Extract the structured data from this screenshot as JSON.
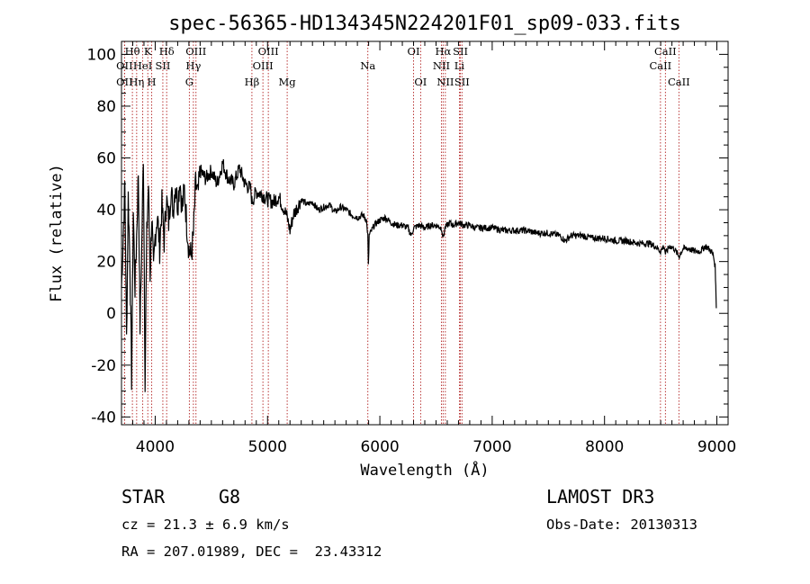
{
  "chart_data": {
    "type": "line",
    "title": "spec-56365-HD134345N224201F01_sp09-033.fits",
    "xlabel": "Wavelength (Å)",
    "ylabel": "Flux (relative)",
    "xlim": [
      3700,
      9100
    ],
    "ylim": [
      -43,
      105
    ],
    "xticks": [
      4000,
      5000,
      6000,
      7000,
      8000,
      9000
    ],
    "yticks": [
      -40,
      -20,
      0,
      20,
      40,
      60,
      80,
      100
    ],
    "series": [
      {
        "name": "flux",
        "points": [
          [
            3700,
            10
          ],
          [
            3715,
            30
          ],
          [
            3730,
            50
          ],
          [
            3745,
            -10
          ],
          [
            3760,
            45
          ],
          [
            3775,
            20
          ],
          [
            3790,
            -25
          ],
          [
            3805,
            40
          ],
          [
            3820,
            10
          ],
          [
            3835,
            30
          ],
          [
            3850,
            55
          ],
          [
            3865,
            -5
          ],
          [
            3880,
            25
          ],
          [
            3895,
            62
          ],
          [
            3910,
            -25
          ],
          [
            3925,
            30
          ],
          [
            3940,
            50
          ],
          [
            3955,
            15
          ],
          [
            3970,
            38
          ],
          [
            3985,
            15
          ],
          [
            4000,
            30
          ],
          [
            4020,
            38
          ],
          [
            4040,
            25
          ],
          [
            4060,
            42
          ],
          [
            4080,
            28
          ],
          [
            4100,
            45
          ],
          [
            4120,
            35
          ],
          [
            4140,
            48
          ],
          [
            4160,
            40
          ],
          [
            4180,
            50
          ],
          [
            4200,
            42
          ],
          [
            4220,
            52
          ],
          [
            4240,
            40
          ],
          [
            4260,
            48
          ],
          [
            4280,
            35
          ],
          [
            4300,
            25
          ],
          [
            4320,
            22
          ],
          [
            4340,
            30
          ],
          [
            4360,
            50
          ],
          [
            4380,
            45
          ],
          [
            4400,
            55
          ],
          [
            4450,
            52
          ],
          [
            4500,
            55
          ],
          [
            4550,
            50
          ],
          [
            4600,
            58
          ],
          [
            4650,
            52
          ],
          [
            4700,
            50
          ],
          [
            4750,
            56
          ],
          [
            4800,
            50
          ],
          [
            4850,
            48
          ],
          [
            4861,
            43
          ],
          [
            4900,
            47
          ],
          [
            4950,
            46
          ],
          [
            5000,
            44
          ],
          [
            5050,
            43
          ],
          [
            5100,
            45
          ],
          [
            5150,
            40
          ],
          [
            5175,
            37
          ],
          [
            5200,
            32
          ],
          [
            5230,
            38
          ],
          [
            5300,
            44
          ],
          [
            5350,
            42
          ],
          [
            5400,
            43
          ],
          [
            5450,
            40
          ],
          [
            5500,
            41
          ],
          [
            5550,
            42
          ],
          [
            5600,
            39
          ],
          [
            5650,
            41
          ],
          [
            5700,
            40
          ],
          [
            5750,
            38
          ],
          [
            5800,
            37
          ],
          [
            5850,
            38
          ],
          [
            5880,
            36
          ],
          [
            5893,
            30
          ],
          [
            5898,
            18
          ],
          [
            5905,
            30
          ],
          [
            5950,
            34
          ],
          [
            6000,
            36
          ],
          [
            6050,
            37
          ],
          [
            6100,
            35
          ],
          [
            6150,
            34
          ],
          [
            6200,
            34
          ],
          [
            6250,
            33
          ],
          [
            6280,
            30
          ],
          [
            6300,
            33
          ],
          [
            6350,
            34
          ],
          [
            6400,
            33
          ],
          [
            6450,
            34
          ],
          [
            6500,
            34
          ],
          [
            6550,
            33
          ],
          [
            6563,
            29
          ],
          [
            6580,
            33
          ],
          [
            6620,
            35
          ],
          [
            6650,
            34
          ],
          [
            6700,
            35
          ],
          [
            6750,
            34
          ],
          [
            6800,
            34
          ],
          [
            6850,
            33
          ],
          [
            6900,
            33
          ],
          [
            6950,
            33
          ],
          [
            7000,
            33
          ],
          [
            7100,
            32
          ],
          [
            7200,
            32
          ],
          [
            7300,
            32
          ],
          [
            7400,
            31
          ],
          [
            7500,
            31
          ],
          [
            7600,
            30
          ],
          [
            7650,
            28
          ],
          [
            7700,
            30
          ],
          [
            7800,
            30
          ],
          [
            7900,
            29
          ],
          [
            8000,
            29
          ],
          [
            8100,
            28
          ],
          [
            8200,
            28
          ],
          [
            8300,
            27
          ],
          [
            8400,
            27
          ],
          [
            8450,
            26
          ],
          [
            8498,
            24
          ],
          [
            8530,
            26
          ],
          [
            8542,
            23
          ],
          [
            8580,
            26
          ],
          [
            8620,
            25
          ],
          [
            8662,
            22
          ],
          [
            8700,
            25
          ],
          [
            8750,
            25
          ],
          [
            8800,
            24
          ],
          [
            8850,
            24
          ],
          [
            8900,
            26
          ],
          [
            8950,
            24
          ],
          [
            8970,
            22
          ],
          [
            8985,
            18
          ],
          [
            8990,
            10
          ],
          [
            8995,
            2
          ]
        ]
      }
    ],
    "spectral_lines": [
      {
        "label": "Hθ",
        "x": 3797,
        "row": 1
      },
      {
        "label": "OII",
        "x": 3727,
        "row": 2
      },
      {
        "label": "OII",
        "x": 3727,
        "row": 3
      },
      {
        "label": "Hη",
        "x": 3835,
        "row": 3
      },
      {
        "label": "HeI",
        "x": 3889,
        "row": 2
      },
      {
        "label": "K",
        "x": 3934,
        "row": 1
      },
      {
        "label": "H",
        "x": 3969,
        "row": 3
      },
      {
        "label": "SII",
        "x": 4068,
        "row": 2
      },
      {
        "label": "Hδ",
        "x": 4102,
        "row": 1
      },
      {
        "label": "OIII",
        "x": 4363,
        "row": 1
      },
      {
        "label": "Hγ",
        "x": 4340,
        "row": 2
      },
      {
        "label": "G",
        "x": 4304,
        "row": 3
      },
      {
        "label": "Hβ",
        "x": 4861,
        "row": 3
      },
      {
        "label": "OIII",
        "x": 5007,
        "row": 1
      },
      {
        "label": "OIII",
        "x": 4959,
        "row": 2
      },
      {
        "label": "Mg",
        "x": 5175,
        "row": 3
      },
      {
        "label": "Na",
        "x": 5893,
        "row": 2
      },
      {
        "label": "OI",
        "x": 6300,
        "row": 1
      },
      {
        "label": "OI",
        "x": 6363,
        "row": 3
      },
      {
        "label": "Hα",
        "x": 6563,
        "row": 1
      },
      {
        "label": "NII",
        "x": 6548,
        "row": 2
      },
      {
        "label": "NII",
        "x": 6583,
        "row": 3
      },
      {
        "label": "SII",
        "x": 6717,
        "row": 1
      },
      {
        "label": "Li",
        "x": 6708,
        "row": 2
      },
      {
        "label": "SII",
        "x": 6731,
        "row": 3
      },
      {
        "label": "CaII",
        "x": 8542,
        "row": 1
      },
      {
        "label": "CaII",
        "x": 8498,
        "row": 2
      },
      {
        "label": "CaII",
        "x": 8662,
        "row": 3
      }
    ]
  },
  "info": {
    "object_class": "STAR",
    "subclass": "G8",
    "survey": "LAMOST DR3",
    "cz": "cz = 21.3 ± 6.9 km/s",
    "obs_date": "Obs-Date: 20130313",
    "coords": "RA = 207.01989, DEC =  23.43312"
  },
  "colors": {
    "line_marker": "#b22222",
    "spectrum": "#000000"
  }
}
